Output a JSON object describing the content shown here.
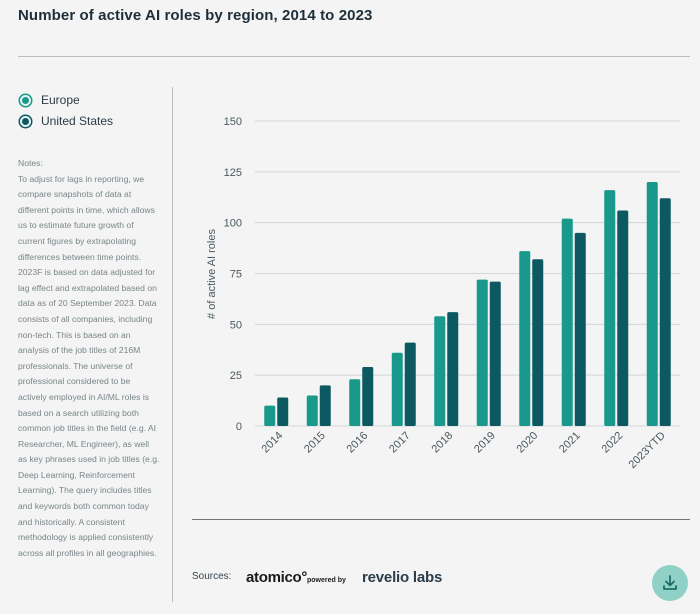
{
  "header": {
    "title": "Number of active AI roles by region, 2014 to 2023"
  },
  "legend": {
    "items": [
      {
        "label": "Europe",
        "color": "#19998c"
      },
      {
        "label": "United States",
        "color": "#0d5962"
      }
    ]
  },
  "notes": {
    "heading": "Notes:",
    "body": "To adjust for lags in reporting, we compare snapshots of data at different points in time, which allows us to estimate future growth of current figures by extrapolating differences between time points. 2023F is based on data adjusted for lag effect and extrapolated based on data as of 20 September 2023. Data consists of all companies, including non-tech. This is based on an analysis of the job titles of 216M professionals. The universe of professional considered to be actively employed in AI/ML roles is based on a search utilizing both common job titles in the field (e.g. AI Researcher, ML Engineer), as well as key phrases used in job titles (e.g. Deep Learning, Reinforcement Learning). The query includes titles and keywords both common today and historically. A consistent methodology is applied consistently across all profiles in all geographies."
  },
  "footer": {
    "sources_label": "Sources:",
    "logo_atomico": "atomico°",
    "logo_powered": "powered by",
    "logo_revelio": "revelio labs",
    "download_icon": "download-icon"
  },
  "chart_data": {
    "type": "bar",
    "title": "Number of active AI roles by region, 2014 to 2023",
    "xlabel": "",
    "ylabel": "# of active AI roles",
    "ylim": [
      0,
      150
    ],
    "yticks": [
      0,
      25,
      50,
      75,
      100,
      125,
      150
    ],
    "grid": true,
    "categories": [
      "2014",
      "2015",
      "2016",
      "2017",
      "2018",
      "2019",
      "2020",
      "2021",
      "2022",
      "2023YTD"
    ],
    "series": [
      {
        "name": "Europe",
        "color": "#19998c",
        "values": [
          10,
          15,
          23,
          36,
          54,
          72,
          86,
          102,
          116,
          120
        ]
      },
      {
        "name": "United States",
        "color": "#0d5962",
        "values": [
          14,
          20,
          29,
          41,
          56,
          71,
          82,
          95,
          106,
          112
        ]
      }
    ]
  }
}
